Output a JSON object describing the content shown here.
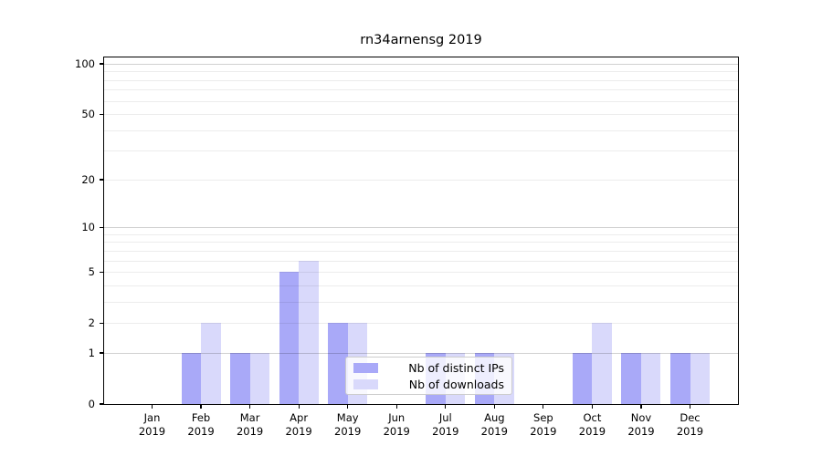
{
  "chart_data": {
    "type": "bar",
    "title": "rn34arnensg 2019",
    "categories": [
      "Jan",
      "Feb",
      "Mar",
      "Apr",
      "May",
      "Jun",
      "Jul",
      "Aug",
      "Sep",
      "Oct",
      "Nov",
      "Dec"
    ],
    "x_year_label": "2019",
    "series": [
      {
        "name": "Nb of distinct IPs",
        "color": "#a9a9f8",
        "values": [
          0,
          1,
          1,
          5,
          2,
          0,
          1,
          1,
          0,
          1,
          1,
          1
        ]
      },
      {
        "name": "Nb of downloads",
        "color": "#d9d9fb",
        "values": [
          0,
          2,
          1,
          6,
          2,
          0,
          1,
          1,
          0,
          2,
          1,
          1
        ]
      }
    ],
    "y_axis": {
      "scale": "log1p",
      "ylim": [
        0,
        100
      ],
      "tick_values": [
        0,
        1,
        2,
        5,
        10,
        20,
        50,
        100
      ],
      "tick_labels": [
        "0",
        "1",
        "2",
        "5",
        "10",
        "20",
        "50",
        "100"
      ],
      "major_gridlines": [
        1,
        10,
        100
      ],
      "minor_gridlines": [
        2,
        3,
        4,
        5,
        6,
        7,
        8,
        9,
        20,
        30,
        40,
        50,
        60,
        70,
        80,
        90
      ]
    },
    "grid": true,
    "legend_position": "lower-center"
  }
}
